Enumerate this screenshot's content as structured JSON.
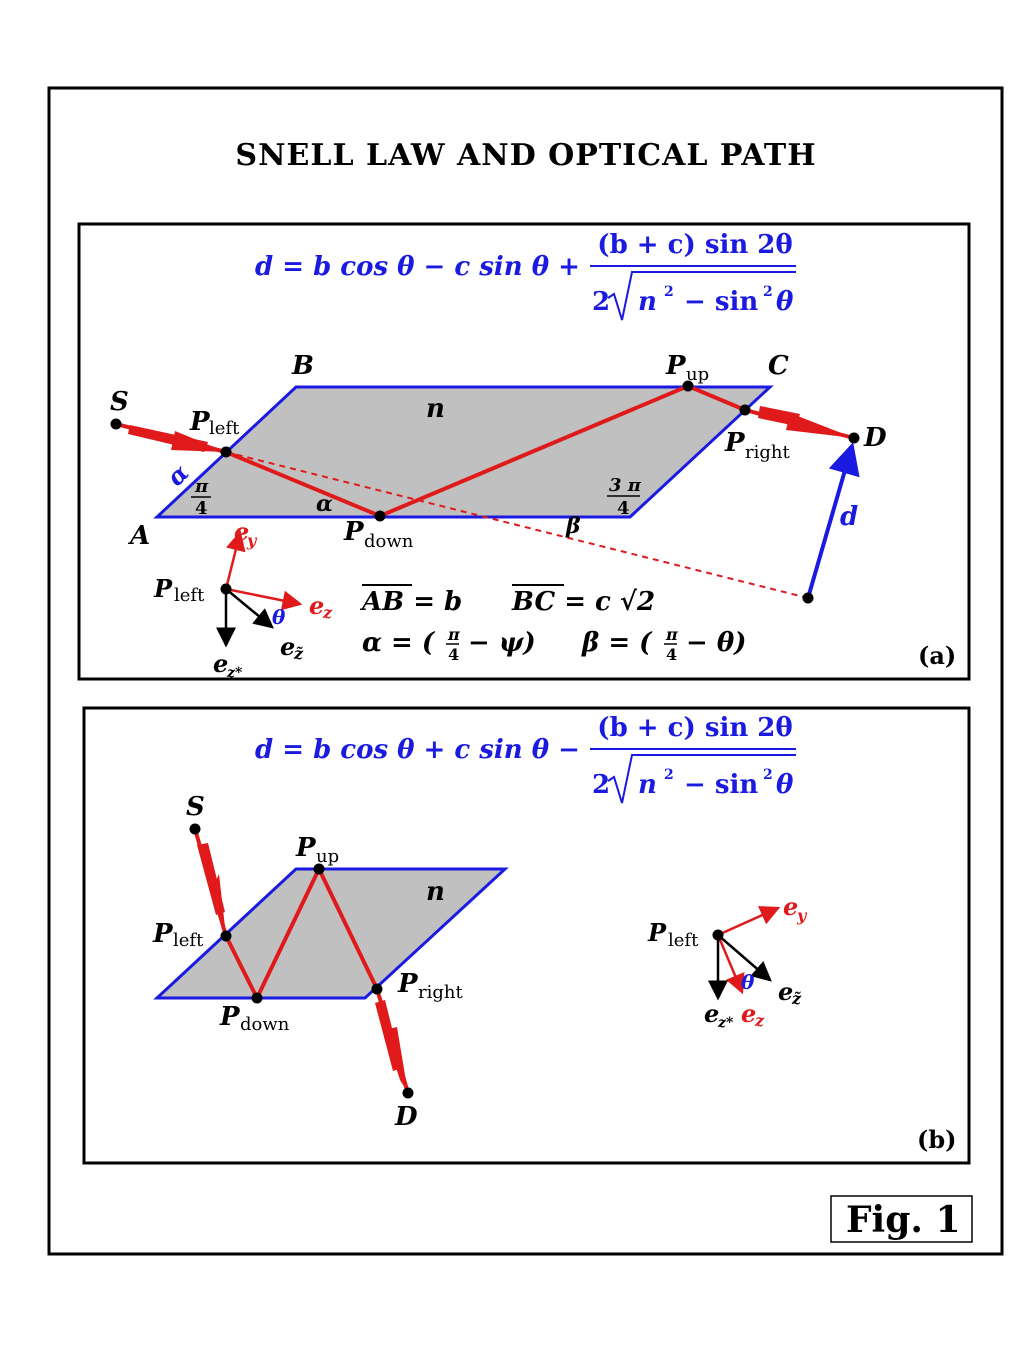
{
  "title": "SNELL LAW AND OPTICAL PATH",
  "figure_label": "Fig. 1",
  "colors": {
    "blue": "#1a1ae0",
    "red": "#e01a1a",
    "slab": "#c0c0c0",
    "black": "#000000"
  },
  "panel_a": {
    "label": "(a)",
    "formula": {
      "lhs": "d = b cos θ − c sin θ +",
      "numerator": "(b + c) sin 2θ",
      "den_coef": "2",
      "den_n": "n",
      "den_minus": "− sin",
      "den_theta": "θ",
      "sq": "2"
    },
    "points": {
      "S": "S",
      "B": "B",
      "C": "C",
      "A": "A",
      "D": "D",
      "n": "n",
      "P": "P",
      "up": "up",
      "left": "left",
      "right": "right",
      "down": "down"
    },
    "angles": {
      "pi": "π",
      "four": "4",
      "three_pi": "3 π",
      "alpha": "α",
      "beta": "β",
      "alpha_side": "α",
      "d_label": "d"
    },
    "basis": {
      "P": "P",
      "left": "left",
      "ey_e": "e",
      "ey_sub": "y",
      "ez_e": "e",
      "ez_sub": "z",
      "theta": "θ",
      "etilde_e": "e",
      "etilde_sub": "z̃",
      "ezstar_e": "e",
      "ezstar_sub": "z*"
    },
    "relations": {
      "ab": "AB = b",
      "bc": "BC = c √2",
      "alpha_eq": "α = (",
      "pi": "π",
      "four": "4",
      "minus_psi": "− ψ)",
      "beta_eq": "β = (",
      "minus_theta": "− θ)"
    }
  },
  "panel_b": {
    "label": "(b)",
    "formula": {
      "lhs": "d = b cos θ + c sin θ −",
      "numerator": "(b + c) sin 2θ",
      "den_coef": "2",
      "den_n": "n",
      "den_minus": "− sin",
      "den_theta": "θ",
      "sq": "2"
    },
    "points": {
      "S": "S",
      "D": "D",
      "n": "n",
      "P": "P",
      "up": "up",
      "left": "left",
      "right": "right",
      "down": "down"
    },
    "basis": {
      "P": "P",
      "left": "left",
      "ey_e": "e",
      "ey_sub": "y",
      "ez_e": "e",
      "ez_sub": "z",
      "theta": "θ",
      "etilde_e": "e",
      "etilde_sub": "z̃",
      "ezstar_e": "e",
      "ezstar_sub": "z*"
    }
  }
}
